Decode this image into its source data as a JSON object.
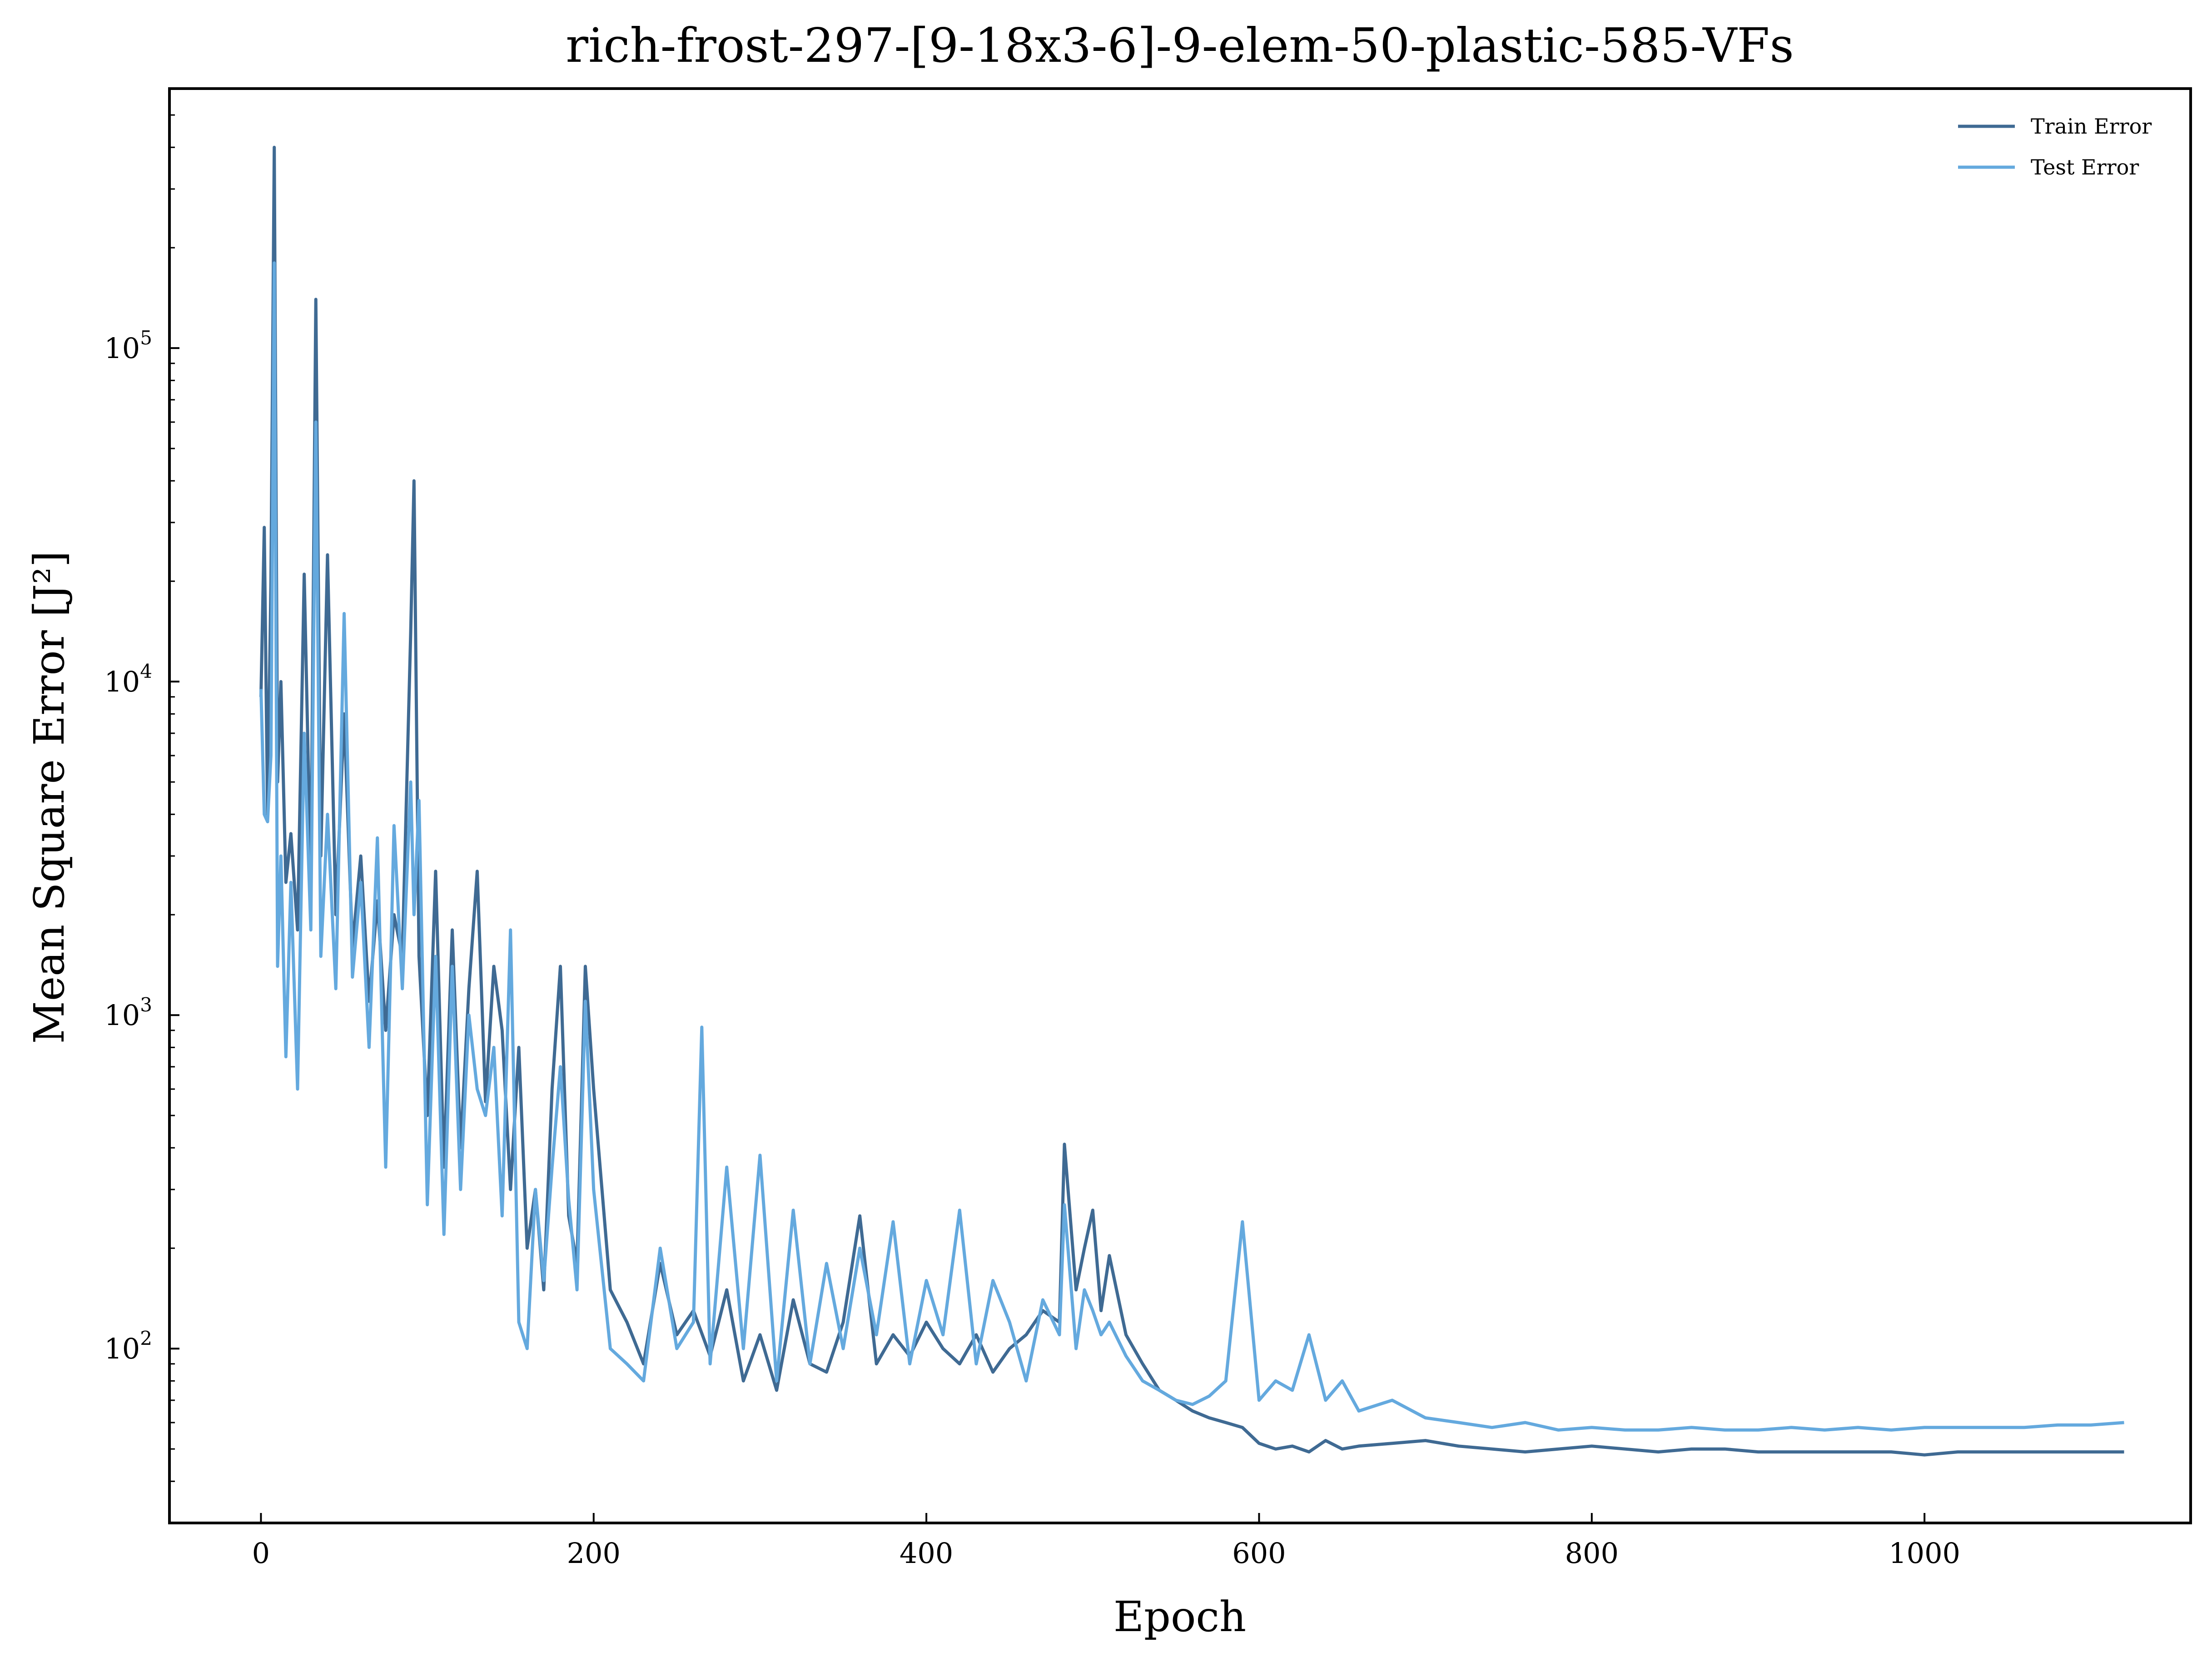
{
  "chart_data": {
    "type": "line",
    "title": "rich-frost-297-[9-18x3-6]-9-elem-50-plastic-585-VFs",
    "xlabel": "Epoch",
    "ylabel": "Mean Square Error [J²]",
    "y_scale": "log",
    "xlim": [
      -55,
      1160
    ],
    "ylim": [
      30,
      600000
    ],
    "x_ticks": [
      0,
      200,
      400,
      600,
      800,
      1000
    ],
    "y_ticks": [
      {
        "value": 100,
        "base": "10",
        "exp": "2"
      },
      {
        "value": 1000,
        "base": "10",
        "exp": "3"
      },
      {
        "value": 10000,
        "base": "10",
        "exp": "4"
      },
      {
        "value": 100000,
        "base": "10",
        "exp": "5"
      }
    ],
    "grid": false,
    "legend_position": "top-right",
    "series": [
      {
        "name": "Train Error",
        "color": "#3f6a93",
        "x": [
          0,
          2,
          4,
          6,
          8,
          10,
          12,
          15,
          18,
          22,
          26,
          30,
          33,
          36,
          40,
          45,
          50,
          55,
          60,
          65,
          70,
          75,
          80,
          85,
          90,
          92,
          95,
          100,
          105,
          110,
          115,
          120,
          125,
          130,
          135,
          140,
          145,
          150,
          155,
          160,
          165,
          170,
          175,
          180,
          185,
          190,
          195,
          200,
          210,
          220,
          230,
          240,
          250,
          260,
          270,
          280,
          290,
          300,
          310,
          320,
          330,
          340,
          350,
          360,
          370,
          380,
          390,
          400,
          410,
          420,
          430,
          440,
          450,
          460,
          470,
          480,
          483,
          490,
          495,
          500,
          505,
          510,
          520,
          530,
          540,
          550,
          560,
          570,
          580,
          590,
          600,
          610,
          620,
          630,
          640,
          650,
          660,
          680,
          700,
          720,
          740,
          760,
          780,
          800,
          820,
          840,
          860,
          880,
          900,
          920,
          940,
          960,
          980,
          1000,
          1020,
          1040,
          1060,
          1080,
          1100,
          1120
        ],
        "values": [
          9000,
          29000,
          4000,
          20000,
          400000,
          5000,
          10000,
          2500,
          3500,
          1800,
          21000,
          2500,
          140000,
          3000,
          24000,
          2000,
          8000,
          1600,
          3000,
          1100,
          2200,
          900,
          2000,
          1500,
          14000,
          40000,
          1500,
          500,
          2700,
          350,
          1800,
          400,
          1200,
          2700,
          550,
          1400,
          900,
          300,
          800,
          200,
          300,
          150,
          600,
          1400,
          250,
          180,
          1400,
          600,
          150,
          120,
          90,
          180,
          110,
          130,
          95,
          150,
          80,
          110,
          75,
          140,
          90,
          85,
          120,
          250,
          90,
          110,
          95,
          120,
          100,
          90,
          110,
          85,
          100,
          110,
          130,
          120,
          410,
          150,
          200,
          260,
          130,
          190,
          110,
          90,
          75,
          70,
          65,
          62,
          60,
          58,
          52,
          50,
          51,
          49,
          53,
          50,
          51,
          52,
          53,
          51,
          50,
          49,
          50,
          51,
          50,
          49,
          50,
          50,
          49,
          49,
          49,
          49,
          49,
          48,
          49,
          49,
          49,
          49,
          49,
          49
        ]
      },
      {
        "name": "Test Error",
        "color": "#64a9de",
        "x": [
          0,
          2,
          4,
          6,
          8,
          10,
          12,
          15,
          18,
          22,
          26,
          30,
          33,
          36,
          40,
          45,
          50,
          55,
          60,
          65,
          70,
          75,
          80,
          85,
          90,
          92,
          95,
          100,
          105,
          110,
          115,
          120,
          125,
          130,
          135,
          140,
          145,
          150,
          155,
          160,
          165,
          170,
          175,
          180,
          185,
          190,
          195,
          200,
          210,
          220,
          230,
          240,
          250,
          260,
          265,
          270,
          280,
          290,
          300,
          310,
          320,
          330,
          340,
          350,
          360,
          370,
          380,
          390,
          400,
          410,
          420,
          430,
          440,
          450,
          460,
          470,
          480,
          483,
          490,
          495,
          500,
          505,
          510,
          520,
          530,
          540,
          550,
          560,
          570,
          580,
          590,
          600,
          610,
          620,
          630,
          640,
          650,
          660,
          680,
          700,
          720,
          740,
          760,
          780,
          800,
          820,
          840,
          860,
          880,
          900,
          920,
          940,
          960,
          980,
          1000,
          1020,
          1040,
          1060,
          1080,
          1100,
          1120
        ],
        "values": [
          9500,
          4000,
          3800,
          6000,
          180000,
          1400,
          3000,
          750,
          2500,
          600,
          7000,
          1800,
          60000,
          1500,
          4000,
          1200,
          16000,
          1300,
          2500,
          800,
          3400,
          350,
          3700,
          1200,
          5000,
          2000,
          4400,
          270,
          1500,
          220,
          1400,
          300,
          1000,
          600,
          500,
          800,
          250,
          1800,
          120,
          100,
          300,
          160,
          350,
          700,
          280,
          150,
          1100,
          300,
          100,
          90,
          80,
          200,
          100,
          120,
          920,
          90,
          350,
          100,
          380,
          80,
          260,
          90,
          180,
          100,
          200,
          110,
          240,
          90,
          160,
          110,
          260,
          90,
          160,
          120,
          80,
          140,
          110,
          270,
          100,
          150,
          130,
          110,
          120,
          95,
          80,
          75,
          70,
          68,
          72,
          80,
          240,
          70,
          80,
          75,
          110,
          70,
          80,
          65,
          70,
          62,
          60,
          58,
          60,
          57,
          58,
          57,
          57,
          58,
          57,
          57,
          58,
          57,
          58,
          57,
          58,
          58,
          58,
          58,
          59,
          59,
          60
        ]
      }
    ]
  }
}
